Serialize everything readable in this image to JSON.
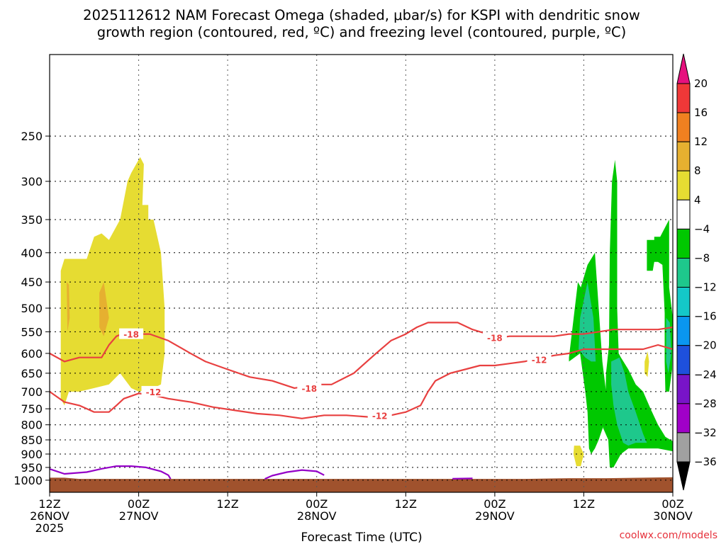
{
  "title_lines": [
    "2025112612 NAM Forecast Omega (shaded, μbar/s) for KSPI with dendritic snow",
    "growth region (contoured, red, ºC) and freezing level (contoured, purple, ºC)"
  ],
  "chart_data": {
    "type": "area",
    "xlabel": "Forecast Time (UTC)",
    "x_range_hours": [
      0,
      84
    ],
    "x_ticks": [
      {
        "hour": 0,
        "lines": [
          "12Z",
          "26NOV",
          "2025"
        ]
      },
      {
        "hour": 12,
        "lines": [
          "00Z",
          "27NOV"
        ]
      },
      {
        "hour": 24,
        "lines": [
          "12Z"
        ]
      },
      {
        "hour": 36,
        "lines": [
          "00Z",
          "28NOV"
        ]
      },
      {
        "hour": 48,
        "lines": [
          "12Z"
        ]
      },
      {
        "hour": 60,
        "lines": [
          "00Z",
          "29NOV"
        ]
      },
      {
        "hour": 72,
        "lines": [
          "12Z"
        ]
      },
      {
        "hour": 84,
        "lines": [
          "00Z",
          "30NOV"
        ]
      }
    ],
    "y_scale": "log-pressure",
    "y_range_hpa": [
      1050,
      180
    ],
    "y_ticks": [
      250,
      300,
      350,
      400,
      450,
      500,
      550,
      600,
      650,
      700,
      750,
      800,
      850,
      900,
      950,
      1000
    ],
    "grid": true,
    "omega_colorbar": {
      "labels": [
        "20",
        "16",
        "12",
        "8",
        "4",
        "−4",
        "−8",
        "−12",
        "−16",
        "−20",
        "−24",
        "−28",
        "−32",
        "−36"
      ],
      "colors": [
        "#f03838",
        "#f08020",
        "#e6b030",
        "#e6dc32",
        "#ffffff",
        "#00c800",
        "#1ec88c",
        "#14c8c8",
        "#0a96f0",
        "#1e50dc",
        "#7814c8",
        "#a000c8",
        "#a0a0a0"
      ],
      "top_arrow_color": "#e6117e",
      "bottom_arrow_color": "#000000"
    },
    "omega_regions": [
      {
        "bin": "4 to 8",
        "color": "#e6dc32",
        "points": [
          [
            1.5,
            720
          ],
          [
            2,
            740
          ],
          [
            2.6,
            700
          ],
          [
            4,
            700
          ],
          [
            6,
            690
          ],
          [
            8,
            680
          ],
          [
            9.5,
            650
          ],
          [
            11,
            690
          ],
          [
            12,
            700
          ],
          [
            14,
            690
          ],
          [
            15,
            680
          ],
          [
            15.5,
            600
          ],
          [
            15.5,
            500
          ],
          [
            15,
            400
          ],
          [
            14,
            350
          ],
          [
            13.3,
            350
          ],
          [
            13.3,
            330
          ],
          [
            12.5,
            330
          ],
          [
            12.7,
            280
          ],
          [
            12.2,
            272
          ],
          [
            11,
            290
          ],
          [
            10.5,
            300
          ],
          [
            9.5,
            350
          ],
          [
            8,
            380
          ],
          [
            7,
            370
          ],
          [
            6,
            375
          ],
          [
            5,
            410
          ],
          [
            2,
            410
          ],
          [
            1.5,
            430
          ]
        ]
      },
      {
        "bin": "8 to 12",
        "color": "#e6b030",
        "points": [
          [
            2.3,
            450
          ],
          [
            2.6,
            455
          ],
          [
            2.7,
            520
          ],
          [
            2.4,
            550
          ]
        ]
      },
      {
        "bin": "8 to 12",
        "color": "#e6b030",
        "points": [
          [
            6.7,
            470
          ],
          [
            7.3,
            450
          ],
          [
            8,
            520
          ],
          [
            7.3,
            560
          ],
          [
            6.7,
            540
          ]
        ]
      },
      {
        "bin": "4 to 8",
        "color": "#e6dc32",
        "points": [
          [
            70.7,
            870
          ],
          [
            71.5,
            870
          ],
          [
            72,
            900
          ],
          [
            71.6,
            945
          ],
          [
            71,
            945
          ],
          [
            70.6,
            900
          ]
        ]
      },
      {
        "bin": "4 to 8",
        "color": "#e6dc32",
        "points": [
          [
            80.2,
            620
          ],
          [
            80.6,
            595
          ],
          [
            80.8,
            620
          ],
          [
            80.6,
            660
          ],
          [
            80.2,
            650
          ]
        ]
      },
      {
        "bin": "-4 to -8",
        "color": "#00c800",
        "points": [
          [
            70,
            610
          ],
          [
            71.2,
            450
          ],
          [
            71.6,
            460
          ],
          [
            72.5,
            420
          ],
          [
            73.5,
            400
          ],
          [
            74.5,
            620
          ],
          [
            75,
            700
          ],
          [
            75,
            780
          ],
          [
            74,
            850
          ],
          [
            73.5,
            880
          ],
          [
            73,
            900
          ],
          [
            72.7,
            880
          ],
          [
            72.5,
            760
          ],
          [
            72.2,
            700
          ],
          [
            71.5,
            600
          ],
          [
            70,
            620
          ]
        ]
      },
      {
        "bin": "-4 to -8",
        "color": "#00c800",
        "points": [
          [
            75.4,
            580
          ],
          [
            75.5,
            400
          ],
          [
            75.8,
            300
          ],
          [
            76.2,
            275
          ],
          [
            76.5,
            300
          ],
          [
            76.5,
            500
          ],
          [
            76.7,
            600
          ],
          [
            77,
            610
          ],
          [
            78,
            640
          ],
          [
            79,
            680
          ],
          [
            80,
            700
          ],
          [
            81,
            750
          ],
          [
            82,
            800
          ],
          [
            83,
            840
          ],
          [
            84,
            855
          ],
          [
            84,
            890
          ],
          [
            82,
            880
          ],
          [
            80,
            880
          ],
          [
            78,
            880
          ],
          [
            77,
            900
          ],
          [
            76,
            950
          ],
          [
            75.5,
            950
          ],
          [
            75.3,
            850
          ],
          [
            74.6,
            810
          ],
          [
            74.9,
            750
          ],
          [
            75,
            650
          ]
        ]
      },
      {
        "bin": "-4 to -8",
        "color": "#00c800",
        "points": [
          [
            80.5,
            380
          ],
          [
            81.5,
            380
          ],
          [
            81.5,
            375
          ],
          [
            82.3,
            375
          ],
          [
            83.5,
            350
          ],
          [
            83.5,
            460
          ],
          [
            84,
            520
          ],
          [
            83.9,
            640
          ],
          [
            83.5,
            700
          ],
          [
            83,
            700
          ],
          [
            82.9,
            620
          ],
          [
            82.9,
            510
          ],
          [
            82.6,
            420
          ],
          [
            82,
            415
          ],
          [
            81.5,
            415
          ],
          [
            81.3,
            430
          ],
          [
            80.5,
            430
          ]
        ]
      },
      {
        "bin": "-8 to -12",
        "color": "#1ec88c",
        "points": [
          [
            71.3,
            590
          ],
          [
            71.5,
            520
          ],
          [
            72.5,
            450
          ],
          [
            73.3,
            520
          ],
          [
            73.6,
            620
          ],
          [
            73,
            620
          ],
          [
            72.2,
            610
          ]
        ]
      },
      {
        "bin": "-8 to -12",
        "color": "#1ec88c",
        "points": [
          [
            75.7,
            620
          ],
          [
            76.8,
            610
          ],
          [
            77.5,
            650
          ],
          [
            78,
            700
          ],
          [
            79,
            760
          ],
          [
            80,
            830
          ],
          [
            80.5,
            860
          ],
          [
            79,
            860
          ],
          [
            78,
            870
          ],
          [
            77.3,
            860
          ],
          [
            76.5,
            800
          ],
          [
            76,
            740
          ],
          [
            75.7,
            680
          ]
        ]
      },
      {
        "bin": "-8 to -12",
        "color": "#1ec88c",
        "points": [
          [
            83.1,
            520
          ],
          [
            83.6,
            530
          ],
          [
            83.8,
            600
          ],
          [
            83.4,
            650
          ],
          [
            83.1,
            620
          ]
        ]
      }
    ],
    "contours": [
      {
        "label": "-18",
        "color": "#e84040",
        "points": [
          [
            0,
            600
          ],
          [
            2,
            620
          ],
          [
            4,
            610
          ],
          [
            7,
            610
          ],
          [
            8,
            580
          ],
          [
            9,
            560
          ],
          [
            10.5,
            550
          ],
          [
            12,
            555
          ],
          [
            13.5,
            555
          ],
          [
            16,
            570
          ],
          [
            19,
            600
          ],
          [
            21,
            620
          ],
          [
            24,
            640
          ],
          [
            27,
            660
          ],
          [
            30,
            670
          ],
          [
            33,
            690
          ],
          [
            36,
            680
          ],
          [
            38,
            680
          ],
          [
            41,
            650
          ],
          [
            44,
            600
          ],
          [
            46,
            570
          ],
          [
            48,
            555
          ],
          [
            49.5,
            540
          ],
          [
            51,
            530
          ],
          [
            53,
            530
          ],
          [
            55,
            530
          ],
          [
            57,
            545
          ],
          [
            59,
            555
          ],
          [
            60,
            565
          ],
          [
            62,
            560
          ],
          [
            64,
            560
          ],
          [
            66,
            560
          ],
          [
            68,
            560
          ],
          [
            70,
            555
          ],
          [
            72,
            555
          ],
          [
            74,
            550
          ],
          [
            76,
            545
          ],
          [
            78,
            545
          ],
          [
            80,
            545
          ],
          [
            82,
            545
          ],
          [
            84,
            540
          ]
        ],
        "label_positions": [
          [
            11,
            555
          ],
          [
            35,
            690
          ],
          [
            60,
            563
          ]
        ]
      },
      {
        "label": "-12",
        "color": "#e84040",
        "points": [
          [
            0,
            700
          ],
          [
            2,
            730
          ],
          [
            4,
            740
          ],
          [
            6,
            760
          ],
          [
            8,
            760
          ],
          [
            9,
            740
          ],
          [
            10,
            720
          ],
          [
            12,
            705
          ],
          [
            14,
            710
          ],
          [
            16,
            720
          ],
          [
            19,
            730
          ],
          [
            22,
            745
          ],
          [
            25,
            755
          ],
          [
            28,
            765
          ],
          [
            31,
            770
          ],
          [
            34,
            780
          ],
          [
            37,
            770
          ],
          [
            40,
            770
          ],
          [
            43,
            775
          ],
          [
            46,
            770
          ],
          [
            48,
            760
          ],
          [
            50,
            740
          ],
          [
            51,
            700
          ],
          [
            52,
            670
          ],
          [
            54,
            650
          ],
          [
            56,
            640
          ],
          [
            58,
            630
          ],
          [
            60,
            630
          ],
          [
            62,
            625
          ],
          [
            64,
            620
          ],
          [
            66,
            612
          ],
          [
            68,
            605
          ],
          [
            70,
            600
          ],
          [
            72,
            590
          ],
          [
            75,
            590
          ],
          [
            78,
            590
          ],
          [
            80,
            590
          ],
          [
            82,
            580
          ],
          [
            84,
            590
          ]
        ],
        "label_positions": [
          [
            14,
            700
          ],
          [
            44.5,
            770
          ],
          [
            66,
            615
          ]
        ]
      },
      {
        "label": "0",
        "color": "#9400c8",
        "points": [
          [
            0,
            956
          ],
          [
            2,
            975
          ],
          [
            5,
            968
          ],
          [
            7,
            955
          ],
          [
            9,
            945
          ],
          [
            11,
            945
          ],
          [
            13,
            950
          ],
          [
            15,
            965
          ],
          [
            16,
            980
          ],
          [
            16.3,
            995
          ]
        ],
        "label_positions": []
      },
      {
        "label": "0",
        "color": "#9400c8",
        "points": [
          [
            29,
            995
          ],
          [
            30,
            982
          ],
          [
            32,
            968
          ],
          [
            34,
            960
          ],
          [
            36,
            965
          ],
          [
            37,
            980
          ]
        ],
        "label_positions": []
      },
      {
        "label": "0",
        "color": "#9400c8",
        "points": [
          [
            54.3,
            994
          ],
          [
            57,
            993
          ]
        ],
        "label_positions": []
      }
    ],
    "terrain": {
      "color": "#a0522d",
      "points": [
        [
          0,
          990
        ],
        [
          2,
          990
        ],
        [
          4,
          995
        ],
        [
          10,
          995
        ],
        [
          20,
          995
        ],
        [
          30,
          995
        ],
        [
          40,
          995
        ],
        [
          50,
          995
        ],
        [
          60,
          995
        ],
        [
          64,
          995
        ],
        [
          70,
          992
        ],
        [
          75,
          992
        ],
        [
          80,
          990
        ],
        [
          84,
          988
        ]
      ]
    }
  },
  "credit": "coolwx.com/models"
}
